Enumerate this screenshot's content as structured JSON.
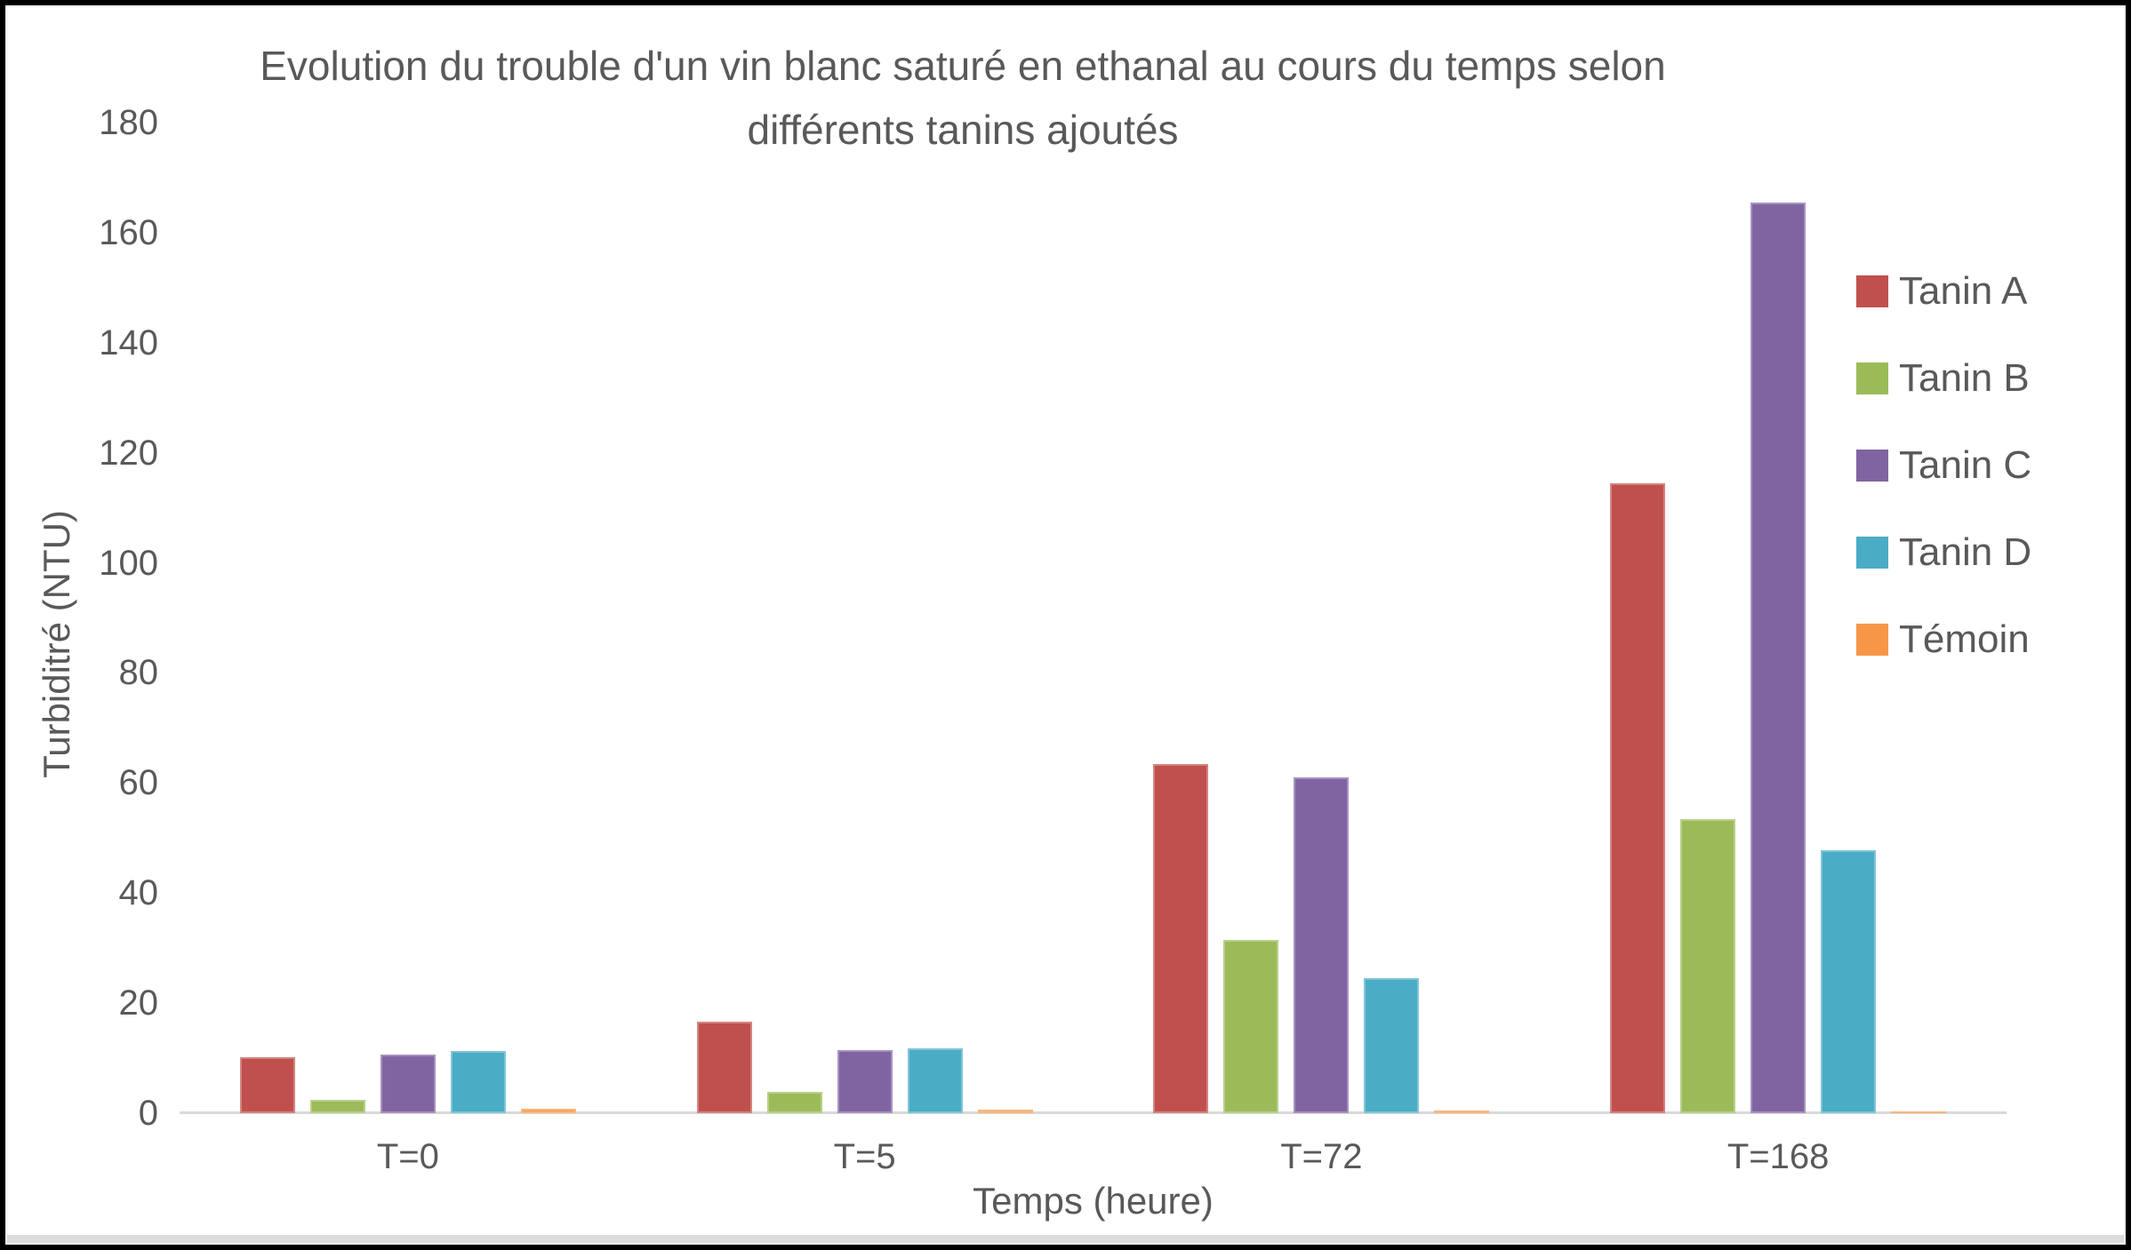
{
  "chart_data": {
    "type": "bar",
    "title": "Evolution du trouble d'un vin blanc saturé en ethanal au cours du temps selon différents tanins ajoutés",
    "title_lines": [
      "Evolution du trouble d'un vin blanc saturé en ethanal au cours du temps selon",
      "différents tanins ajoutés"
    ],
    "xlabel": "Temps (heure)",
    "ylabel": "Turbiditré (NTU)",
    "categories": [
      "T=0",
      "T=5",
      "T=72",
      "T=168"
    ],
    "series": [
      {
        "name": "Tanin A",
        "color": "#C0504D",
        "values": [
          10.2,
          16.6,
          63.5,
          114.5
        ]
      },
      {
        "name": "Tanin B",
        "color": "#9BBB59",
        "values": [
          2.4,
          3.9,
          31.5,
          53.5
        ]
      },
      {
        "name": "Tanin C",
        "color": "#8064A2",
        "values": [
          10.7,
          11.5,
          61.0,
          165.5
        ]
      },
      {
        "name": "Tanin D",
        "color": "#4BACC6",
        "values": [
          11.3,
          11.8,
          24.5,
          47.8
        ]
      },
      {
        "name": "Témoin",
        "color": "#F79646",
        "values": [
          0.8,
          0.6,
          0.5,
          0.4
        ]
      }
    ],
    "ylim": [
      0,
      180
    ],
    "yticks": [
      0,
      20,
      40,
      60,
      80,
      100,
      120,
      140,
      160,
      180
    ],
    "grid": false,
    "legend_position": "right",
    "colors": {
      "text": "#595959",
      "axis_line": "#D9D9D9",
      "background": "#FFFFFF",
      "frame_border": "#000000"
    }
  }
}
